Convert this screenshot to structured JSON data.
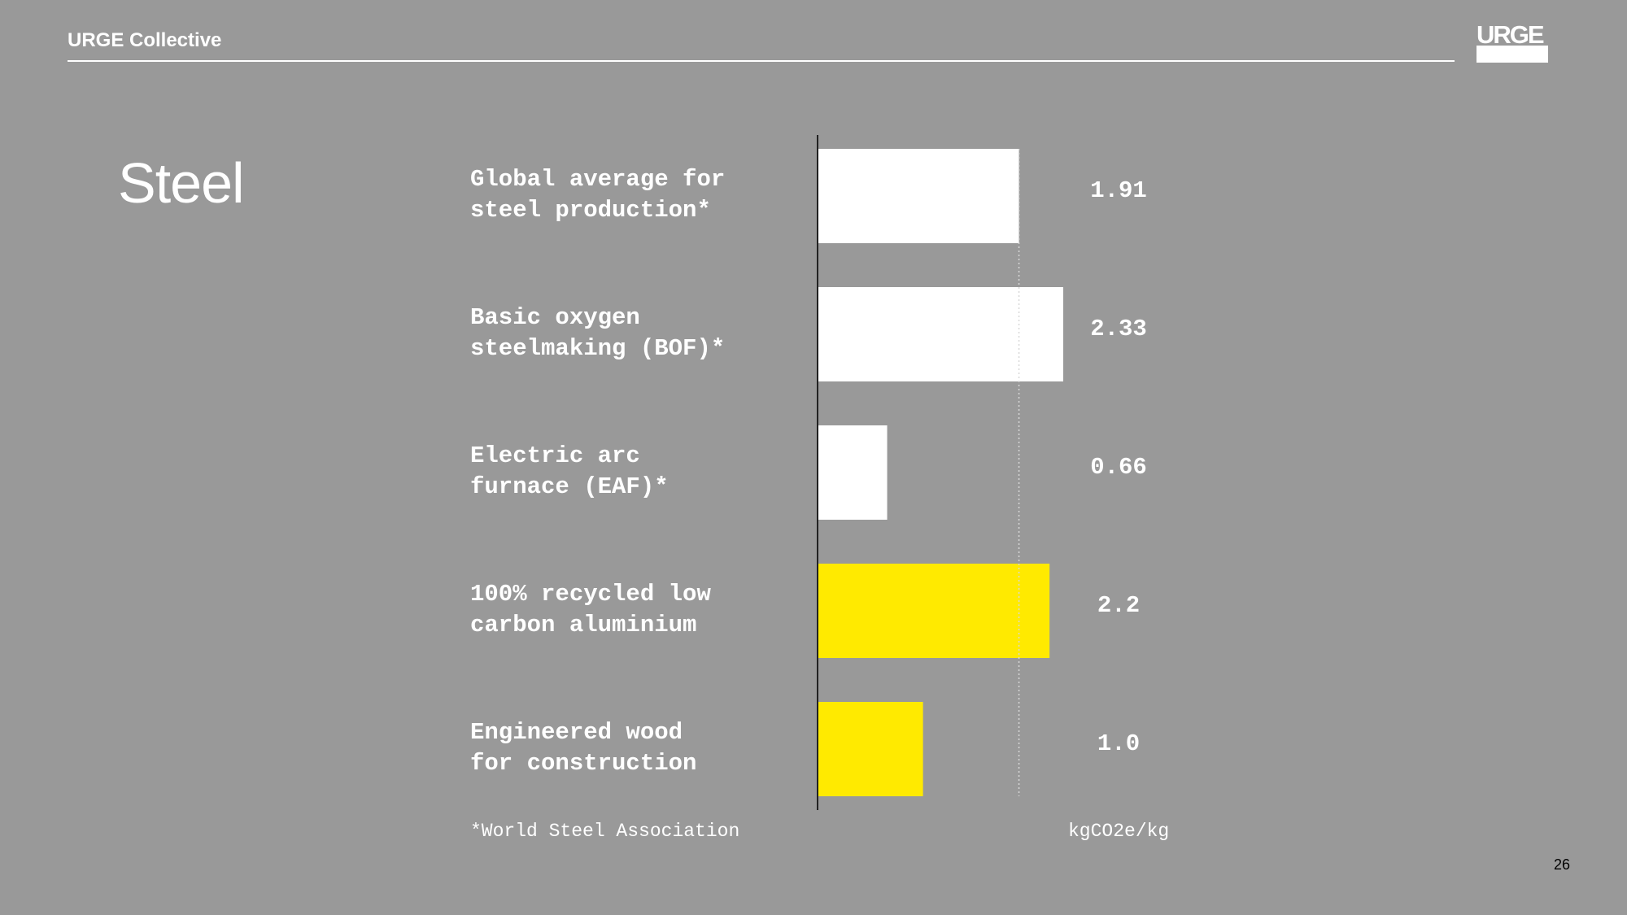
{
  "header": {
    "brand": "URGE Collective",
    "logo_text": "URGE"
  },
  "slide": {
    "title": "Steel",
    "page_number": "26"
  },
  "chart_data": {
    "type": "bar",
    "orientation": "horizontal",
    "categories": [
      "Global average for\nsteel production*",
      "Basic oxygen\nsteelmaking (BOF)*",
      "Electric arc\nfurnace (EAF)*",
      "100% recycled low\ncarbon aluminium",
      "Engineered wood\nfor construction"
    ],
    "values": [
      1.91,
      2.33,
      0.66,
      2.2,
      1.0
    ],
    "value_labels": [
      "1.91",
      "2.33",
      "0.66",
      "2.2",
      "1.0"
    ],
    "colors": [
      "#ffffff",
      "#ffffff",
      "#ffffff",
      "#ffea00",
      "#ffea00"
    ],
    "reference_value": 1.91,
    "unit": "kgCO2e/kg",
    "footnote": "*World Steel Association",
    "xlim": [
      0,
      2.33
    ],
    "grid": false,
    "legend": "none"
  },
  "colors": {
    "background": "#999999",
    "text": "#ffffff",
    "highlight": "#ffea00"
  }
}
